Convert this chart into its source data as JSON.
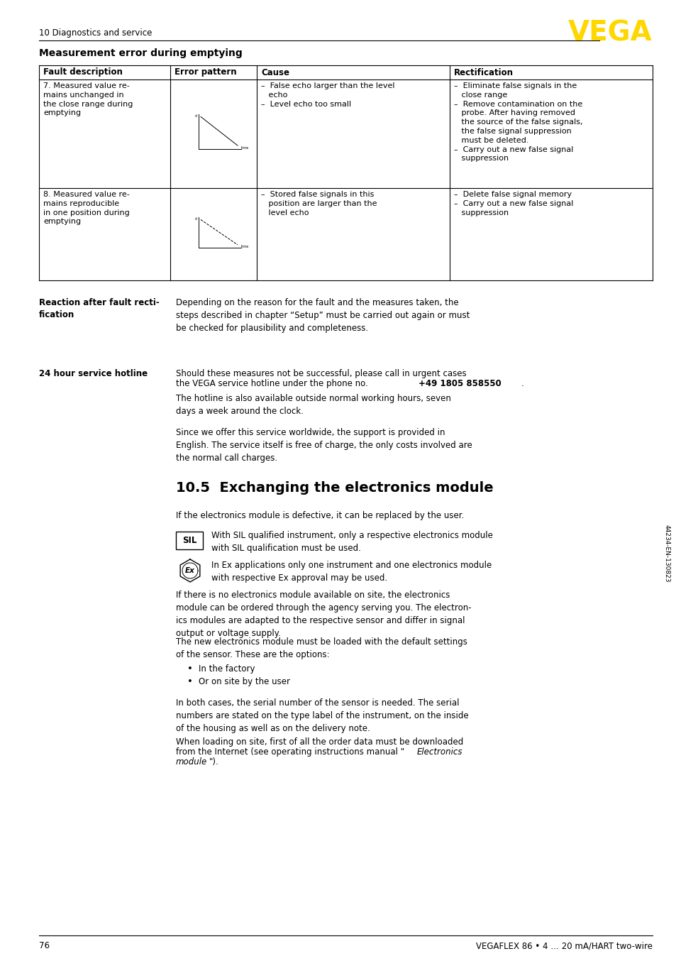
{
  "page_bg": "#ffffff",
  "header_text": "10 Diagnostics and service",
  "vega_color": "#FFD700",
  "section_title": "Measurement error during emptying",
  "table_headers": [
    "Fault description",
    "Error pattern",
    "Cause",
    "Rectification"
  ],
  "row7_fault": "7. Measured value re-\nmains unchanged in\nthe close range during\nemptying",
  "row7_cause": "–  False echo larger than the level\n   echo\n–  Level echo too small",
  "row7_rect": "–  Eliminate false signals in the\n   close range\n–  Remove contamination on the\n   probe. After having removed\n   the source of the false signals,\n   the false signal suppression\n   must be deleted.\n–  Carry out a new false signal\n   suppression",
  "row8_fault": "8. Measured value re-\nmains reproducible\nin one position during\nemptying",
  "row8_cause": "–  Stored false signals in this\n   position are larger than the\n   level echo",
  "row8_rect": "–  Delete false signal memory\n–  Carry out a new false signal\n   suppression",
  "reaction_label": "Reaction after fault recti-\nfication",
  "reaction_text": "Depending on the reason for the fault and the measures taken, the\nsteps described in chapter “Setup” must be carried out again or must\nbe checked for plausibility and completeness.",
  "hotline_label": "24 hour service hotline",
  "hotline_text_pre": "Should these measures not be successful, please call in urgent cases\nthe VEGA service hotline under the phone no. ",
  "hotline_bold": "+49 1805 858550",
  "hotline_text_post": ".",
  "hotline_text2": "The hotline is also available outside normal working hours, seven\ndays a week around the clock.",
  "hotline_text3": "Since we offer this service worldwide, the support is provided in\nEnglish. The service itself is free of charge, the only costs involved are\nthe normal call charges.",
  "section2_title": "10.5  Exchanging the electronics module",
  "section2_text1": "If the electronics module is defective, it can be replaced by the user.",
  "sil_text": "With SIL qualified instrument, only a respective electronics module\nwith SIL qualification must be used.",
  "ex_text": "In Ex applications only one instrument and one electronics module\nwith respective Ex approval may be used.",
  "section2_text2": "If there is no electronics module available on site, the electronics\nmodule can be ordered through the agency serving you. The electron-\nics modules are adapted to the respective sensor and differ in signal\noutput or voltage supply.",
  "section2_text3": "The new electronics module must be loaded with the default settings\nof the sensor. These are the options:",
  "bullet1": "In the factory",
  "bullet2": "Or on site by the user",
  "section2_text4": "In both cases, the serial number of the sensor is needed. The serial\nnumbers are stated on the type label of the instrument, on the inside\nof the housing as well as on the delivery note.",
  "section2_text5a": "When loading on site, first of all the order data must be downloaded\nfrom the Internet (see operating instructions manual \"",
  "section2_text5b": "Electronics\nmodule",
  "section2_text5c": "\").",
  "footer_page": "76",
  "footer_text": "VEGAFLEX 86 • 4 … 20 mA/HART two-wire",
  "sidebar_text": "44234-EN-130823",
  "text_color": "#000000",
  "body_fontsize": 8.5
}
